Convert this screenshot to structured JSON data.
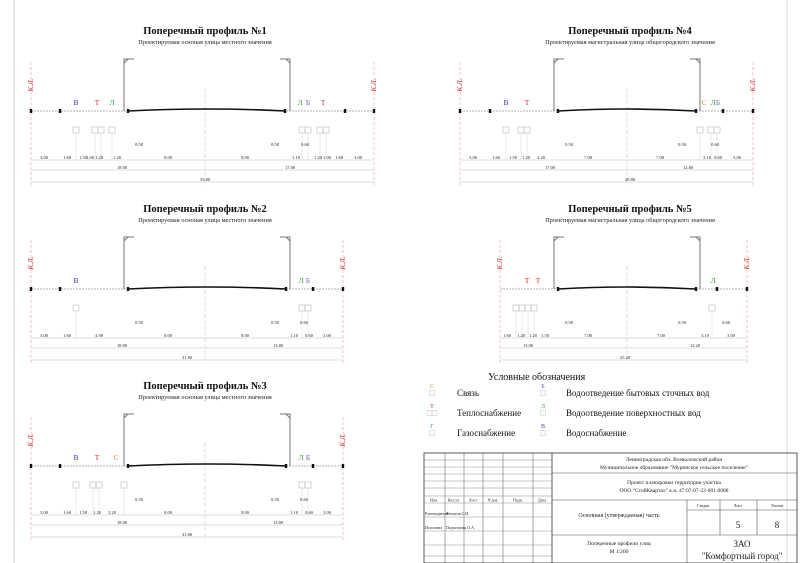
{
  "colors": {
    "В": "#3030c8",
    "Т": "#e02828",
    "Л": "#30b030",
    "Б": "#6868c8",
    "С": "#e08a20",
    "Г": "#20a8c8",
    "kl": "#e02828"
  },
  "kl_label": "К.Л.",
  "profiles": [
    {
      "title": "Поперечный профиль №1",
      "subtitle": "Проектируемая осноная улица местного значения",
      "letters": [
        "В",
        "Т",
        "Л",
        "Л",
        "Б",
        "Т"
      ],
      "offsets": [
        "0.50",
        "0.50",
        "0.60"
      ],
      "row1": [
        "3.00",
        "1.60",
        "1.50",
        "1.00",
        "1.20",
        "1.20",
        "8.00",
        "8.00",
        "1.10",
        "1.20",
        "1.00",
        "1.60",
        "3.00"
      ],
      "row2": [
        "18.00",
        "17.00"
      ],
      "total": "35.00"
    },
    {
      "title": "Поперечный профиль №2",
      "subtitle": "Проектируемая осноная улица местного значения",
      "letters": [
        "В",
        "Л",
        "Б"
      ],
      "offsets": [
        "0.50",
        "0.50",
        "0.60"
      ],
      "row1": [
        "3.00",
        "1.60",
        "4.90",
        "8.00",
        "8.00",
        "1.10",
        "0.60",
        "3.00"
      ],
      "row2": [
        "18.00",
        "13.80"
      ],
      "total": "31.80"
    },
    {
      "title": "Поперечный профиль №3",
      "subtitle": "Проектируемая осноная улица местного значения",
      "letters": [
        "В",
        "Т",
        "С",
        "Л",
        "Б"
      ],
      "offsets": [
        "0.50",
        "0.50",
        "0.60"
      ],
      "row1": [
        "3.00",
        "1.60",
        "1.50",
        "1.20",
        "2.20",
        "8.00",
        "8.00",
        "1.10",
        "0.60",
        "3.00"
      ],
      "row2": [
        "18.00",
        "13.80"
      ],
      "total": "31.80"
    },
    {
      "title": "Поперечный профиль №4",
      "subtitle": "Проектируемая магистральная улица общегородского значения",
      "letters": [
        "В",
        "Т",
        "С",
        "Л",
        "Б"
      ],
      "offsets": [
        "0.50",
        "0.50",
        "0.60"
      ],
      "row1": [
        "3.00",
        "1.60",
        "1.50",
        "1.20",
        "2.20",
        "7.00",
        "7.00",
        "3.10",
        "0.60",
        "3.00"
      ],
      "row2": [
        "17.00",
        "12.80"
      ],
      "total": "29.80"
    },
    {
      "title": "Поперечный профиль №5",
      "subtitle": "Проектируемая магистральная улица общегородского значения",
      "letters": [
        "Т",
        "Т",
        "Л"
      ],
      "offsets": [
        "0.50",
        "0.50",
        "0.60"
      ],
      "row1": [
        "1.60",
        "1.20",
        "1.20",
        "1.50",
        "7.00",
        "7.00",
        "3.10",
        "3.00"
      ],
      "row2": [
        "13.00",
        "12.20"
      ],
      "total": "25.20"
    }
  ],
  "legend": {
    "title": "Условные обозначения",
    "items": [
      {
        "letter": "С",
        "label": "Связь"
      },
      {
        "letter": "Т",
        "label": "Теплоснабжение"
      },
      {
        "letter": "Г",
        "label": "Газоснабжение"
      },
      {
        "letter": "Б",
        "label": "Водоотведение бытовых сточных вод"
      },
      {
        "letter": "Л",
        "label": "Водоотведение поверхностных вод"
      },
      {
        "letter": "В",
        "label": "Водоснабжение"
      }
    ]
  },
  "stamp": {
    "location_line1": "Ленинградская обл. Всеволожский район",
    "location_line2": "Муниципальное образование \"Муринское сельское поселение\"",
    "project_line1": "Проект планировки территории участка",
    "project_line2": "ООО \"СтойКвартал\" к.н. 47:07:07-22-001:0088",
    "part": "Основная (утверждаемая) часть",
    "stage_header": "Стадия",
    "sheet_header": "Лист",
    "sheets_header": "Листов",
    "stage": "",
    "sheet": "5",
    "sheets": "8",
    "drawing_line1": "Поперечные профили улиц",
    "drawing_line2": "М 1:200",
    "company_line1": "ЗАО",
    "company_line2": "\"Комфортный город\"",
    "col_headers": [
      "Изм.",
      "Кол.уч.",
      "Лист",
      "N док.",
      "Подп.",
      "Дата"
    ],
    "role1": "Руководитель",
    "name1": "Филатов С.И.",
    "role2": "Исполнил",
    "name2": "Подъельная О.А."
  }
}
